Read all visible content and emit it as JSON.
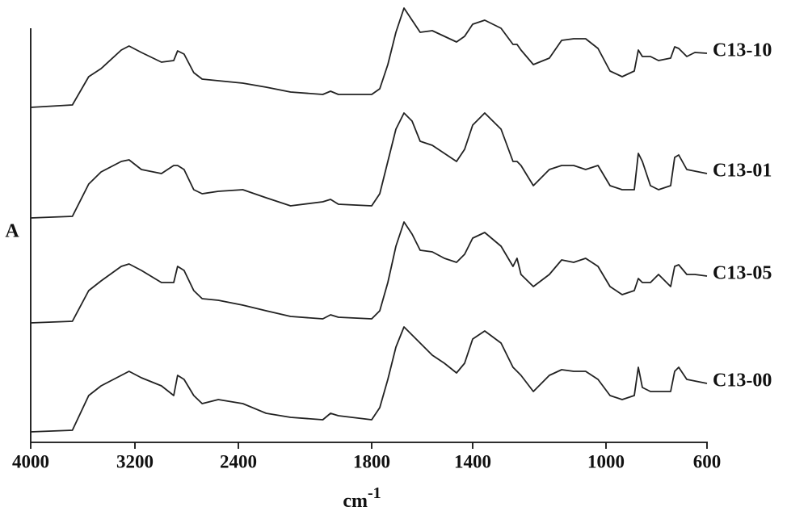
{
  "chart_data": {
    "type": "line",
    "xlabel": "cm",
    "xlabel_superscript": "-1",
    "ylabel": "A",
    "xlim": [
      4000,
      600
    ],
    "xticks": [
      4000,
      3200,
      2400,
      1800,
      1400,
      1000,
      600
    ],
    "ylim": [
      0,
      52
    ],
    "x": [
      4000,
      3680,
      3555,
      3460,
      3305,
      3245,
      3150,
      2995,
      2900,
      2870,
      2820,
      2745,
      2680,
      2555,
      2380,
      2275,
      2165,
      2020,
      1985,
      1950,
      1800,
      1768,
      1736,
      1704,
      1672,
      1640,
      1608,
      1560,
      1512,
      1464,
      1432,
      1400,
      1364,
      1315,
      1279,
      1267,
      1255,
      1218,
      1170,
      1133,
      1097,
      1061,
      1024,
      984,
      936,
      888,
      872,
      856,
      824,
      792,
      744,
      728,
      712,
      680,
      648,
      600
    ],
    "series": [
      {
        "name": "C13-10",
        "color": "#222222",
        "values": [
          41.5,
          41.8,
          45.3,
          46.3,
          48.6,
          49.1,
          48.3,
          47.1,
          47.3,
          48.5,
          48.1,
          45.8,
          45,
          44.8,
          44.5,
          44,
          43.4,
          43.1,
          43.5,
          43.1,
          43.1,
          43.8,
          46.8,
          50.8,
          53.8,
          52.3,
          50.8,
          51,
          50.3,
          49.6,
          50.3,
          51.8,
          52.3,
          51.3,
          49.3,
          49.3,
          48.6,
          46.8,
          47.6,
          49.8,
          50,
          50,
          48.8,
          46,
          45.3,
          46,
          48.6,
          47.8,
          47.8,
          47.3,
          47.6,
          49,
          48.8,
          47.8,
          48.3,
          48.2
        ]
      },
      {
        "name": "C13-01",
        "color": "#222222",
        "values": [
          27.8,
          28,
          32,
          33.5,
          34.8,
          35,
          33.8,
          33.3,
          34.3,
          34.3,
          33.8,
          31.3,
          30.8,
          31.1,
          31.3,
          30.3,
          29.3,
          29.8,
          30.1,
          29.5,
          29.3,
          30.8,
          34.8,
          38.8,
          40.8,
          39.8,
          37.3,
          36.8,
          35.8,
          34.8,
          36.3,
          39.3,
          40.8,
          38.8,
          34.8,
          34.8,
          34.3,
          31.8,
          33.8,
          34.3,
          34.3,
          33.8,
          34.3,
          31.8,
          31.3,
          31.3,
          35.8,
          34.8,
          31.8,
          31.3,
          31.8,
          35.3,
          35.6,
          33.8,
          33.6,
          33.3
        ]
      },
      {
        "name": "C13-05",
        "color": "#222222",
        "values": [
          14.8,
          15,
          18.8,
          20,
          21.8,
          22.1,
          21.3,
          19.8,
          19.8,
          21.8,
          21.3,
          18.8,
          17.8,
          17.6,
          17,
          16.3,
          15.6,
          15.3,
          15.8,
          15.5,
          15.3,
          16.3,
          19.8,
          24.3,
          27.3,
          25.8,
          23.8,
          23.6,
          22.8,
          22.3,
          23.3,
          25.3,
          26,
          24.3,
          21.8,
          22.8,
          20.8,
          19.3,
          20.8,
          22.6,
          22.3,
          22.8,
          21.8,
          19.3,
          18.3,
          18.8,
          20.3,
          19.8,
          19.8,
          20.8,
          19.3,
          21.8,
          22,
          20.8,
          20.8,
          20.6
        ]
      },
      {
        "name": "C13-00",
        "color": "#222222",
        "values": [
          1.3,
          1.5,
          5.8,
          7,
          8.3,
          8.8,
          8,
          7,
          5.8,
          8.3,
          7.8,
          5.8,
          4.8,
          5.3,
          4.8,
          3.6,
          3.1,
          2.8,
          3.6,
          3.3,
          2.8,
          4.3,
          7.8,
          11.8,
          14.3,
          13.3,
          12.3,
          10.8,
          9.8,
          8.6,
          9.8,
          12.8,
          13.8,
          12.3,
          9.3,
          8.8,
          8.3,
          6.3,
          8.3,
          9,
          8.8,
          8.8,
          7.8,
          5.8,
          5.3,
          5.8,
          9.3,
          6.8,
          6.3,
          6.3,
          6.3,
          8.8,
          9.3,
          7.8,
          7.6,
          7.3
        ]
      }
    ]
  }
}
